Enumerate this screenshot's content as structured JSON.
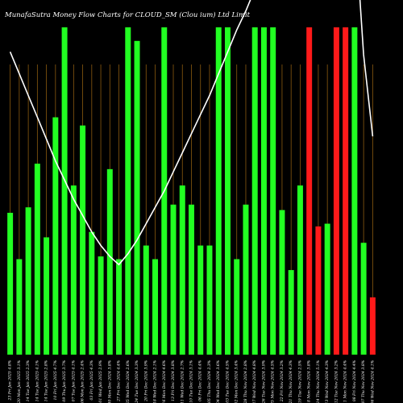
{
  "chart_data": {
    "type": "bar",
    "title": "MunafaSutra  Money Flow  Charts for CLOUD_SM                  (Clou                ium)  Ltd  Limit",
    "xlabel": "",
    "ylabel": "",
    "grid": true,
    "colors": {
      "background": "#000000",
      "positive": "#22ff22",
      "negative": "#ff1a1a",
      "grid": "#8b5a10",
      "line": "#ffffff"
    },
    "categories": [
      "23 Fri Jan 2025 4.8%",
      "20 Mon Jan 2025 3.1%",
      "14 Tue Jan 2025 2.3%",
      "14 Tue Jan 2025 4.1%",
      "14 Tue Jan 2025 2.8%",
      "10 Fri Jan 2025 4.7%",
      "09 Thu Jan 2025 3.7%",
      "07 Tue Jan 2025 4.1%",
      "06 Mon Jan 2025 2.4%",
      "03 Fri Jan 2025 4.3%",
      "01 Wed Jan 2025 2.9%",
      "30 Mon Dec 2024 3.8%",
      "27 Fri Dec 2024 4.4%",
      "25 Wed Dec 2024 2.6%",
      "24 Tue Dec 2024 3.3%",
      "20 Fri Dec 2024 3.9%",
      "18 Wed Dec 2024 2.1%",
      "16 Mon Dec 2024 4.6%",
      "13 Fri Dec 2024 3.8%",
      "11 Wed Dec 2024 2.7%",
      "10 Tue Dec 2024 3.1%",
      "06 Fri Dec 2024 4.4%",
      "05 Thu Dec 2024 2.3%",
      "04 Wed Dec 2024 3.6%",
      "03 Tue Dec 2024 4.5%",
      "02 Mon Dec 2024 3.4%",
      "28 Thu Nov 2024 2.8%",
      "27 Wed Nov 2024 4.8%",
      "26 Tue Nov 2024 3.9%",
      "25 Mon Nov 2024 4.5%",
      "22 Fri Nov 2024 3.2%",
      "21 Thu Nov 2024 4.3%",
      "19 Tue Nov 2024 2.5%",
      "18 Mon Nov 2024 3.8%",
      "14 Thu Nov 2024 5.1%",
      "13 Wed Nov 2024 4.3%",
      "12 Tue Nov 2024 3.2%",
      "11 Mon Nov 2024 4.4%",
      "08 Fri Nov 2024 4.4%",
      "07 Thu Nov 2024 3.8%",
      "06 Wed Nov 2024 4.1%"
    ],
    "values": [
      52,
      35,
      54,
      70,
      43,
      87,
      120,
      62,
      84,
      45,
      36,
      68,
      35,
      120,
      115,
      40,
      35,
      120,
      55,
      62,
      55,
      40,
      40,
      120,
      120,
      35,
      55,
      120,
      120,
      120,
      53,
      31,
      62,
      120,
      47,
      48,
      120,
      120,
      120,
      41,
      21
    ],
    "bar_colors": [
      "green",
      "green",
      "green",
      "green",
      "green",
      "green",
      "green",
      "green",
      "green",
      "green",
      "green",
      "green",
      "green",
      "green",
      "green",
      "green",
      "green",
      "green",
      "green",
      "green",
      "green",
      "green",
      "green",
      "green",
      "green",
      "green",
      "green",
      "green",
      "green",
      "green",
      "green",
      "green",
      "green",
      "red",
      "red",
      "green",
      "red",
      "red",
      "green",
      "green",
      "red"
    ],
    "line_values": [
      111,
      103,
      95,
      87,
      79,
      71,
      64,
      57,
      51,
      45,
      40,
      36,
      33,
      37,
      42,
      48,
      54,
      60,
      67,
      74,
      81,
      88,
      95,
      103,
      111,
      119,
      126,
      134,
      142,
      150,
      158,
      160,
      160,
      160,
      160,
      160,
      160,
      160,
      160,
      110,
      80
    ],
    "ylim": [
      0,
      130
    ]
  }
}
